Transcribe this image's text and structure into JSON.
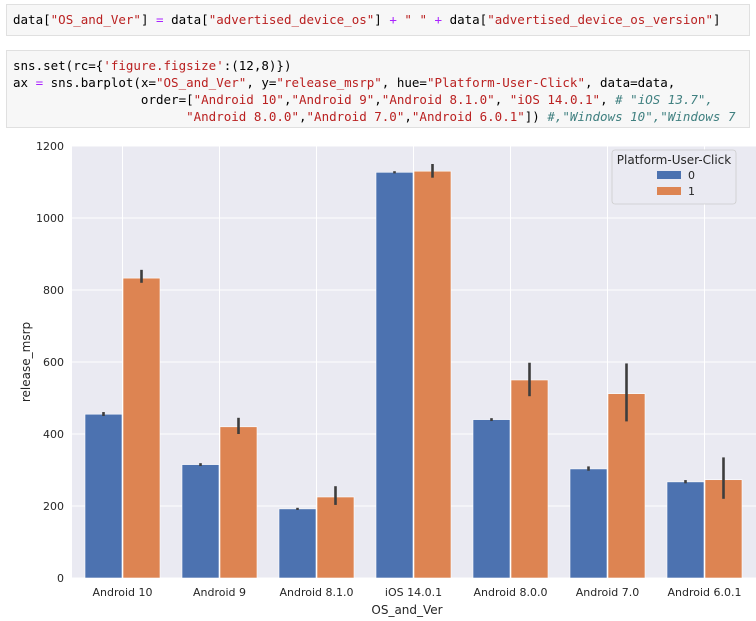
{
  "cell1": {
    "tokens": [
      {
        "t": "data[",
        "c": "k"
      },
      {
        "t": "\"OS_and_Ver\"",
        "c": "s"
      },
      {
        "t": "] ",
        "c": "k"
      },
      {
        "t": "=",
        "c": "op"
      },
      {
        "t": " data[",
        "c": "k"
      },
      {
        "t": "\"advertised_device_os\"",
        "c": "s"
      },
      {
        "t": "] ",
        "c": "k"
      },
      {
        "t": "+",
        "c": "op"
      },
      {
        "t": " ",
        "c": "k"
      },
      {
        "t": "\" \"",
        "c": "s"
      },
      {
        "t": " ",
        "c": "k"
      },
      {
        "t": "+",
        "c": "op"
      },
      {
        "t": " data[",
        "c": "k"
      },
      {
        "t": "\"advertised_device_os_version\"",
        "c": "s"
      },
      {
        "t": "]",
        "c": "k"
      }
    ]
  },
  "cell2": {
    "lines": [
      [
        {
          "t": "sns.set(rc={",
          "c": "k"
        },
        {
          "t": "'figure.figsize'",
          "c": "s"
        },
        {
          "t": ":(12,8)})",
          "c": "k"
        }
      ],
      [
        {
          "t": "ax ",
          "c": "k"
        },
        {
          "t": "=",
          "c": "op"
        },
        {
          "t": " sns.barplot(x=",
          "c": "k"
        },
        {
          "t": "\"OS_and_Ver\"",
          "c": "s"
        },
        {
          "t": ", y=",
          "c": "k"
        },
        {
          "t": "\"release_msrp\"",
          "c": "s"
        },
        {
          "t": ", hue=",
          "c": "k"
        },
        {
          "t": "\"Platform-User-Click\"",
          "c": "s"
        },
        {
          "t": ", data=data,",
          "c": "k"
        }
      ],
      [
        {
          "t": "                 order=[",
          "c": "k"
        },
        {
          "t": "\"Android 10\"",
          "c": "s"
        },
        {
          "t": ",",
          "c": "k"
        },
        {
          "t": "\"Android 9\"",
          "c": "s"
        },
        {
          "t": ",",
          "c": "k"
        },
        {
          "t": "\"Android 8.1.0\"",
          "c": "s"
        },
        {
          "t": ", ",
          "c": "k"
        },
        {
          "t": "\"iOS 14.0.1\"",
          "c": "s"
        },
        {
          "t": ", ",
          "c": "k"
        },
        {
          "t": "# \"iOS 13.7\",",
          "c": "c"
        }
      ],
      [
        {
          "t": "                       ",
          "c": "k"
        },
        {
          "t": "\"Android 8.0.0\"",
          "c": "s"
        },
        {
          "t": ",",
          "c": "k"
        },
        {
          "t": "\"Android 7.0\"",
          "c": "s"
        },
        {
          "t": ",",
          "c": "k"
        },
        {
          "t": "\"Android 6.0.1\"",
          "c": "s"
        },
        {
          "t": "]) ",
          "c": "k"
        },
        {
          "t": "#,\"Windows 10\",\"Windows 7",
          "c": "c"
        }
      ]
    ]
  },
  "chart_data": {
    "type": "bar",
    "xlabel": "OS_and_Ver",
    "ylabel": "release_msrp",
    "ylim": [
      0,
      1200
    ],
    "yticks": [
      0,
      200,
      400,
      600,
      800,
      1000,
      1200
    ],
    "grid": true,
    "legend_title": "Platform-User-Click",
    "legend_position": "top-right",
    "categories": [
      "Android 10",
      "Android 9",
      "Android 8.1.0",
      "iOS 14.0.1",
      "Android 8.0.0",
      "Android 7.0",
      "Android 6.0.1"
    ],
    "series": [
      {
        "name": "0",
        "color": "#4c72b0",
        "values": [
          455,
          315,
          192,
          1127,
          440,
          303,
          267
        ],
        "ci_low": [
          450,
          311,
          189,
          1124,
          436,
          298,
          263
        ],
        "ci_high": [
          461,
          319,
          195,
          1130,
          444,
          310,
          272
        ]
      },
      {
        "name": "1",
        "color": "#dd8452",
        "values": [
          833,
          420,
          225,
          1130,
          550,
          512,
          273
        ],
        "ci_low": [
          820,
          400,
          203,
          1112,
          505,
          435,
          220
        ],
        "ci_high": [
          856,
          445,
          255,
          1150,
          598,
          596,
          335
        ]
      }
    ]
  }
}
